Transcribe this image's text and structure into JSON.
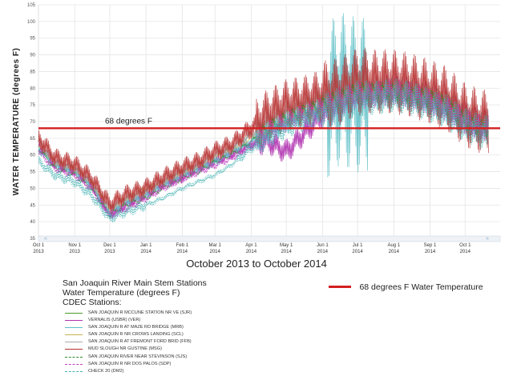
{
  "chart_data": {
    "type": "line",
    "title": "",
    "ylabel": "WATER TEMPERATURE (degrees F)",
    "xlabel": "October 2013 to October 2014",
    "ylim": [
      35,
      105
    ],
    "yticks": [
      "35",
      "40",
      "45",
      "50",
      "55",
      "60",
      "65",
      "70",
      "75",
      "80",
      "85",
      "90",
      "95",
      "100",
      "105"
    ],
    "xticks": [
      {
        "date": "2013-10-01",
        "line1": "Oct 1",
        "line2": "2013"
      },
      {
        "date": "2013-11-01",
        "line1": "Nov 1",
        "line2": "2013"
      },
      {
        "date": "2013-12-01",
        "line1": "Dec 1",
        "line2": "2013"
      },
      {
        "date": "2014-01-01",
        "line1": "Jan 1",
        "line2": "2014"
      },
      {
        "date": "2014-02-01",
        "line1": "Feb 1",
        "line2": "2014"
      },
      {
        "date": "2014-03-01",
        "line1": "Mar 1",
        "line2": "2014"
      },
      {
        "date": "2014-04-01",
        "line1": "Apr 1",
        "line2": "2014"
      },
      {
        "date": "2014-05-01",
        "line1": "May 1",
        "line2": "2014"
      },
      {
        "date": "2014-06-01",
        "line1": "Jun 1",
        "line2": "2014"
      },
      {
        "date": "2014-07-01",
        "line1": "Jul 1",
        "line2": "2014"
      },
      {
        "date": "2014-08-01",
        "line1": "Aug 1",
        "line2": "2014"
      },
      {
        "date": "2014-09-01",
        "line1": "Sep 1",
        "line2": "2014"
      },
      {
        "date": "2014-10-01",
        "line1": "Oct 1",
        "line2": "2014"
      }
    ],
    "grid": true,
    "reference_line": {
      "value": 68,
      "label": "68 degrees F",
      "color": "#d42020"
    },
    "anchor_dates": [
      "2013-10-01",
      "2013-10-15",
      "2013-11-01",
      "2013-11-15",
      "2013-12-01",
      "2013-12-15",
      "2014-01-01",
      "2014-01-15",
      "2014-02-01",
      "2014-02-15",
      "2014-03-01",
      "2014-03-15",
      "2014-04-01",
      "2014-04-15",
      "2014-05-01",
      "2014-05-15",
      "2014-06-01",
      "2014-06-15",
      "2014-07-01",
      "2014-07-15",
      "2014-08-01",
      "2014-08-15",
      "2014-09-01",
      "2014-09-15",
      "2014-10-01",
      "2014-10-15"
    ],
    "series": [
      {
        "name": "SAN JOAQUIN R MCCUNE STATION NR VE (SJR)",
        "color": "#4a9a2a",
        "dash": "",
        "values": [
          64,
          58,
          56,
          52,
          44,
          47,
          50,
          52,
          55,
          57,
          59,
          62,
          66,
          70,
          73,
          75,
          77,
          79,
          80,
          80,
          80,
          80,
          79,
          77,
          72,
          70
        ]
      },
      {
        "name": "VERNALIS (USBR) (VER)",
        "color": "#b030b0",
        "dash": "",
        "values": [
          63,
          57,
          55,
          51,
          42,
          45,
          48,
          51,
          53,
          56,
          58,
          60,
          63,
          64,
          61,
          66,
          72,
          74,
          78,
          79,
          80,
          79,
          77,
          75,
          71,
          69
        ]
      },
      {
        "name": "SAN JOAQUIN R AT MAZE RD BRIDGE (MRB)",
        "color": "#5fc0c8",
        "dash": "",
        "values": [
          62,
          57,
          55,
          51,
          43,
          46,
          48,
          51,
          54,
          56,
          58,
          61,
          64,
          67,
          70,
          72,
          74,
          80,
          78,
          78,
          79,
          78,
          76,
          74,
          70,
          68
        ]
      },
      {
        "name": "SAN JOAQUIN R NR CROWS LANDING (SCL)",
        "color": "#c8b050",
        "dash": "",
        "values": [
          63,
          58,
          56,
          52,
          44,
          47,
          50,
          52,
          55,
          57,
          60,
          62,
          65,
          68,
          71,
          73,
          76,
          77,
          79,
          79,
          80,
          79,
          78,
          76,
          71,
          69
        ]
      },
      {
        "name": "SAN JOAQUIN R AT FREMONT FORD BRID (FFB)",
        "color": "#aaaaaa",
        "dash": "",
        "values": [
          64,
          58,
          56,
          52,
          44,
          47,
          49,
          52,
          55,
          57,
          60,
          62,
          66,
          70,
          73,
          75,
          77,
          78,
          80,
          80,
          80,
          79,
          78,
          76,
          72,
          70
        ]
      },
      {
        "name": "MUD SLOUGH NR GUSTINE (MSG)",
        "color": "#b83232",
        "dash": "",
        "values": [
          65,
          59,
          57,
          53,
          45,
          48,
          50,
          53,
          56,
          58,
          61,
          63,
          68,
          72,
          75,
          76,
          78,
          79,
          82,
          82,
          82,
          81,
          79,
          77,
          72,
          70
        ]
      },
      {
        "name": "SAN JOAQUIN RIVER NEAR STEVINSON (SJS)",
        "color": "#2a8a2a",
        "dash": "2,1.5",
        "values": [
          62,
          56,
          54,
          50,
          42,
          45,
          47,
          50,
          53,
          55,
          58,
          60,
          64,
          68,
          71,
          73,
          75,
          77,
          79,
          79,
          79,
          78,
          77,
          75,
          70,
          68
        ]
      },
      {
        "name": "SAN JOAQUIN R NR DOS PALOS (SDP)",
        "color": "#c040c0",
        "dash": "2,1.5",
        "values": [
          61,
          56,
          54,
          50,
          42,
          44,
          47,
          50,
          53,
          55,
          57,
          59,
          63,
          67,
          70,
          72,
          74,
          76,
          78,
          78,
          79,
          78,
          76,
          74,
          70,
          68
        ]
      },
      {
        "name": "CHECK 20 (DM2)",
        "color": "#40b0b0",
        "dash": "1.5,1.5",
        "values": [
          58,
          54,
          52,
          48,
          41,
          43,
          45,
          47,
          50,
          52,
          54,
          57,
          62,
          66,
          69,
          71,
          73,
          75,
          77,
          77,
          78,
          77,
          75,
          73,
          69,
          67
        ]
      }
    ]
  },
  "legend": {
    "title_line1": "San Joaquin River Main Stem Stations",
    "title_line2": "Water Temperature (degrees F)",
    "title_line3": "CDEC Stations:",
    "reference_label": "68 degrees F Water Temperature"
  },
  "navigator": {
    "left": "«",
    "right": "»"
  },
  "colors": {
    "grid": "#e4e4e4",
    "axis": "#c8d4e0",
    "navigator": "#8ab0cc"
  }
}
